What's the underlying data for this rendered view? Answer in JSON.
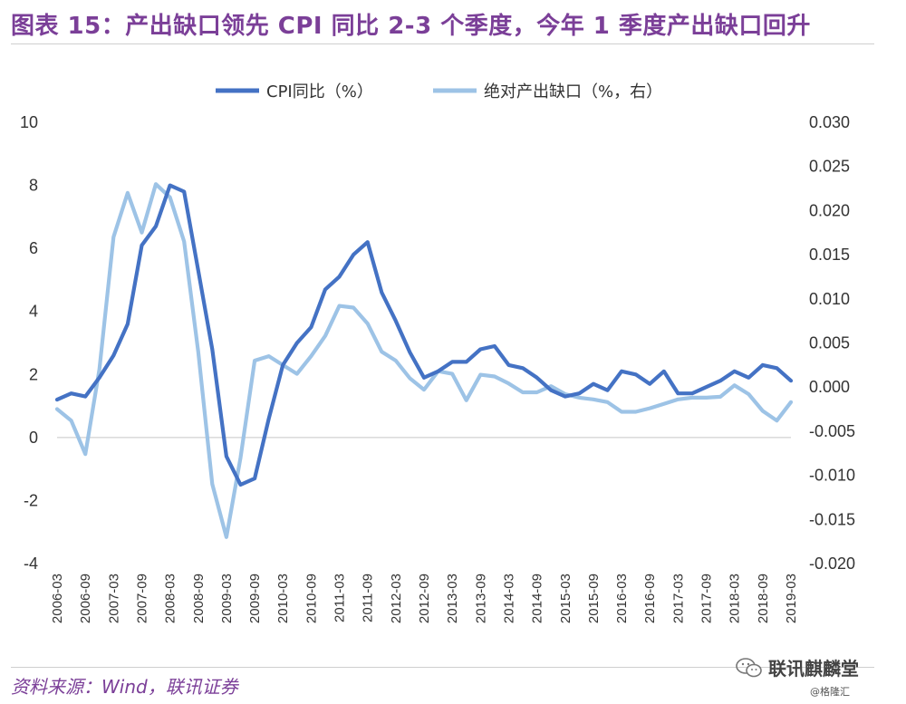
{
  "header": {
    "title": "图表 15：产出缺口领先 CPI 同比 2-3 个季度，今年 1 季度产出缺口回升"
  },
  "footer": {
    "source": "资料来源：Wind，联讯证券",
    "brand": "联讯麒麟堂",
    "credit": "@格隆汇"
  },
  "colors": {
    "cpi": "#4472c4",
    "gap": "#9dc3e6",
    "title": "#7b3f98",
    "zero_line": "#d0d0d0"
  },
  "chart_data": {
    "type": "line",
    "legend_position": "top-center",
    "grid": false,
    "x": [
      "2006-03",
      "2006-06",
      "2006-09",
      "2006-12",
      "2007-03",
      "2007-06",
      "2007-09",
      "2007-12",
      "2008-03",
      "2008-06",
      "2008-09",
      "2008-12",
      "2009-03",
      "2009-06",
      "2009-09",
      "2009-12",
      "2010-03",
      "2010-06",
      "2010-09",
      "2010-12",
      "2011-03",
      "2011-06",
      "2011-09",
      "2011-12",
      "2012-03",
      "2012-06",
      "2012-09",
      "2012-12",
      "2013-03",
      "2013-06",
      "2013-09",
      "2013-12",
      "2014-03",
      "2014-06",
      "2014-09",
      "2014-12",
      "2015-03",
      "2015-06",
      "2015-09",
      "2015-12",
      "2016-03",
      "2016-06",
      "2016-09",
      "2016-12",
      "2017-03",
      "2017-06",
      "2017-09",
      "2017-12",
      "2018-03",
      "2018-06",
      "2018-09",
      "2018-12",
      "2019-03"
    ],
    "x_tick_labels": [
      "2006-03",
      "2006-09",
      "2007-03",
      "2007-09",
      "2008-03",
      "2008-09",
      "2009-03",
      "2009-09",
      "2010-03",
      "2010-09",
      "2011-03",
      "2011-09",
      "2012-03",
      "2012-09",
      "2013-03",
      "2013-09",
      "2014-03",
      "2014-09",
      "2015-03",
      "2015-09",
      "2016-03",
      "2016-09",
      "2017-03",
      "2017-09",
      "2018-03",
      "2018-09",
      "2019-03"
    ],
    "y_left": {
      "range": [
        -4,
        10
      ],
      "ticks": [
        "10",
        "8",
        "6",
        "4",
        "2",
        "0",
        "-2",
        "-4"
      ]
    },
    "y_right": {
      "range": [
        -0.02,
        0.03
      ],
      "ticks": [
        "0.030",
        "0.025",
        "0.020",
        "0.015",
        "0.010",
        "0.005",
        "0.000",
        "-0.005",
        "-0.010",
        "-0.015",
        "-0.020"
      ]
    },
    "series": [
      {
        "name": "CPI同比（%）",
        "axis": "left",
        "values": [
          1.2,
          1.4,
          1.3,
          1.9,
          2.6,
          3.6,
          6.1,
          6.7,
          8.0,
          7.8,
          5.3,
          2.8,
          -0.6,
          -1.5,
          -1.3,
          0.6,
          2.3,
          3.0,
          3.5,
          4.7,
          5.1,
          5.8,
          6.2,
          4.6,
          3.7,
          2.7,
          1.9,
          2.1,
          2.4,
          2.4,
          2.8,
          2.9,
          2.3,
          2.2,
          1.9,
          1.5,
          1.3,
          1.4,
          1.7,
          1.5,
          2.1,
          2.0,
          1.7,
          2.1,
          1.4,
          1.4,
          1.6,
          1.8,
          2.1,
          1.9,
          2.3,
          2.2,
          1.8
        ]
      },
      {
        "name": "绝对产出缺口（%，右）",
        "axis": "right",
        "values": [
          -0.0025,
          -0.0038,
          -0.0076,
          0.002,
          0.017,
          0.022,
          0.0175,
          0.023,
          0.0215,
          0.0165,
          0.004,
          -0.011,
          -0.017,
          -0.008,
          0.003,
          0.0035,
          0.0025,
          0.0015,
          0.0035,
          0.0058,
          0.0092,
          0.009,
          0.0072,
          0.004,
          0.003,
          0.001,
          -0.0003,
          0.0018,
          0.0015,
          -0.0015,
          0.0014,
          0.0012,
          0.0004,
          -0.0006,
          -0.0006,
          0.0001,
          -0.0008,
          -0.0012,
          -0.0014,
          -0.0017,
          -0.0028,
          -0.0028,
          -0.0024,
          -0.0019,
          -0.0014,
          -0.0012,
          -0.0012,
          -0.0011,
          0.0002,
          -0.0008,
          -0.0027,
          -0.0038,
          -0.0017
        ]
      }
    ]
  }
}
